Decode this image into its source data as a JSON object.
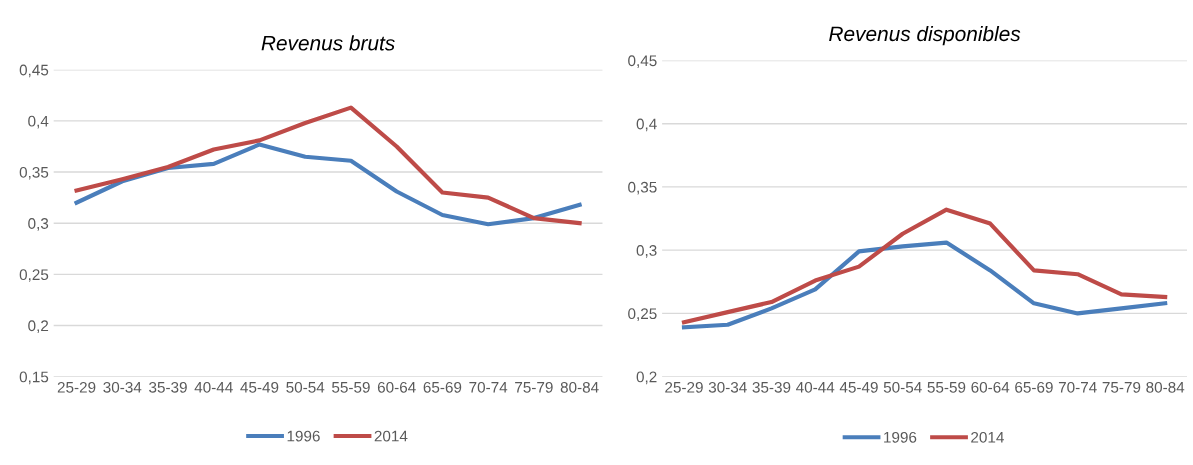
{
  "chart_data": [
    {
      "type": "line",
      "title": "Revenus bruts",
      "categories": [
        "25-29",
        "30-34",
        "35-39",
        "40-44",
        "45-49",
        "50-54",
        "55-59",
        "60-64",
        "65-69",
        "70-74",
        "75-79",
        "80-84"
      ],
      "series": [
        {
          "name": "1996",
          "color": "#4a7ebb",
          "values": [
            0.32,
            0.341,
            0.354,
            0.358,
            0.377,
            0.365,
            0.361,
            0.331,
            0.308,
            0.299,
            0.305,
            0.318
          ]
        },
        {
          "name": "2014",
          "color": "#be4b48",
          "values": [
            0.332,
            0.343,
            0.355,
            0.372,
            0.381,
            0.398,
            0.413,
            0.375,
            0.33,
            0.325,
            0.305,
            0.3
          ]
        }
      ],
      "ylim": [
        0.15,
        0.45
      ],
      "yticks": [
        {
          "value": 0.15,
          "label": "0,15"
        },
        {
          "value": 0.2,
          "label": "0,2"
        },
        {
          "value": 0.25,
          "label": "0,25"
        },
        {
          "value": 0.3,
          "label": "0,3"
        },
        {
          "value": 0.35,
          "label": "0,35"
        },
        {
          "value": 0.4,
          "label": "0,4"
        },
        {
          "value": 0.45,
          "label": "0,45"
        }
      ],
      "grid": "y",
      "legend": "bottom"
    },
    {
      "type": "line",
      "title": "Revenus disponibles",
      "categories": [
        "25-29",
        "30-34",
        "35-39",
        "40-44",
        "45-49",
        "50-54",
        "55-59",
        "60-64",
        "65-69",
        "70-74",
        "75-79",
        "80-84"
      ],
      "series": [
        {
          "name": "1996",
          "color": "#4a7ebb",
          "values": [
            0.239,
            0.241,
            0.254,
            0.269,
            0.299,
            0.303,
            0.306,
            0.284,
            0.258,
            0.25,
            0.254,
            0.258
          ]
        },
        {
          "name": "2014",
          "color": "#be4b48",
          "values": [
            0.243,
            0.251,
            0.259,
            0.276,
            0.287,
            0.313,
            0.332,
            0.321,
            0.284,
            0.281,
            0.265,
            0.263
          ]
        }
      ],
      "ylim": [
        0.2,
        0.45
      ],
      "yticks": [
        {
          "value": 0.2,
          "label": "0,2"
        },
        {
          "value": 0.25,
          "label": "0,25"
        },
        {
          "value": 0.3,
          "label": "0,3"
        },
        {
          "value": 0.35,
          "label": "0,35"
        },
        {
          "value": 0.4,
          "label": "0,4"
        },
        {
          "value": 0.45,
          "label": "0,45"
        }
      ],
      "grid": "y",
      "legend": "bottom"
    }
  ]
}
